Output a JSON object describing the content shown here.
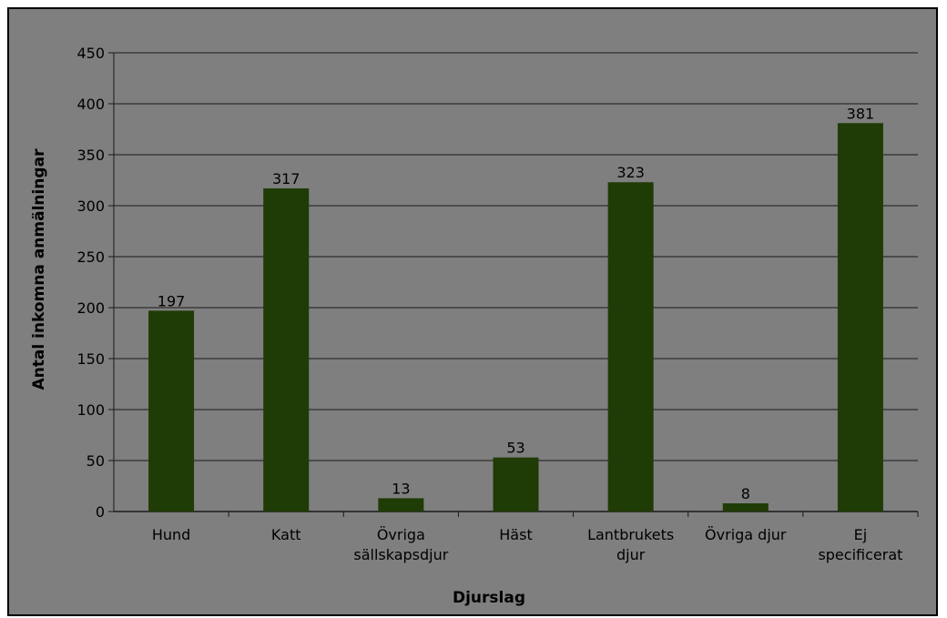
{
  "chart_data": {
    "type": "bar",
    "categories": [
      [
        "Hund"
      ],
      [
        "Katt"
      ],
      [
        "Övriga",
        "sällskapsdjur"
      ],
      [
        "Häst"
      ],
      [
        "Lantbrukets",
        "djur"
      ],
      [
        "Övriga djur"
      ],
      [
        "Ej",
        "specificerat"
      ]
    ],
    "values": [
      197,
      317,
      13,
      53,
      323,
      8,
      381
    ],
    "title": "",
    "xlabel": "Djurslag",
    "ylabel": "Antal inkomna anmälningar",
    "ylim": [
      0,
      450
    ],
    "yticks": [
      0,
      50,
      100,
      150,
      200,
      250,
      300,
      350,
      400,
      450
    ],
    "grid": true,
    "legend": "none",
    "colors": {
      "bar": "#1f3b06",
      "plot_background": "#7f7f7f",
      "gridline": "#1a1a1a",
      "text": "#000000"
    }
  }
}
